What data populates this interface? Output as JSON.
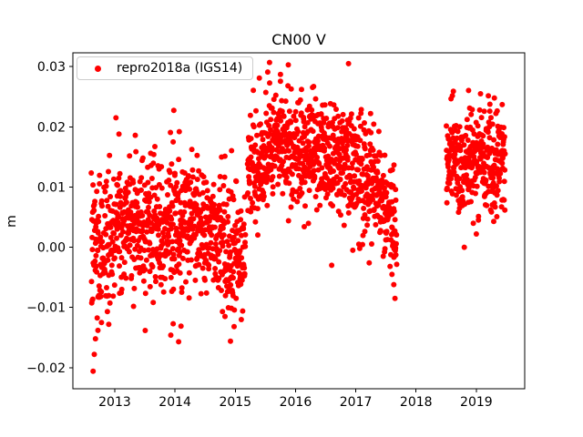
{
  "figure": {
    "background": "#ffffff"
  },
  "chart_data": {
    "type": "scatter",
    "title": "CN00 V",
    "xlabel": "",
    "ylabel": "m",
    "xlim": [
      2012.305,
      2019.803
    ],
    "ylim": [
      -0.0235,
      0.0323
    ],
    "grid": false,
    "xticks": {
      "values": [
        2013,
        2014,
        2015,
        2016,
        2017,
        2018,
        2019
      ],
      "labels": [
        "2013",
        "2014",
        "2015",
        "2016",
        "2017",
        "2018",
        "2019"
      ]
    },
    "yticks": {
      "values": [
        0.03,
        0.02,
        0.01,
        0.0,
        -0.01,
        -0.02
      ],
      "labels": [
        "0.03",
        "0.02",
        "0.01",
        "0.00",
        "−0.01",
        "−0.02"
      ]
    },
    "legend": {
      "position": "upper left",
      "entries": [
        {
          "label": "repro2018a (IGS14)",
          "color": "#ff0000",
          "marker": "point"
        }
      ]
    },
    "marker": {
      "color": "#ff0000",
      "radius": 3
    },
    "gaps": [
      [
        2017.68,
        2018.5
      ]
    ],
    "series": [
      {
        "name": "repro2018a (IGS14)",
        "model": {
          "seed": 7,
          "clamp": [
            -0.0215,
            0.0307
          ],
          "segments": [
            {
              "x0": 2012.61,
              "x1": 2013.0,
              "m0": -0.0005,
              "m1": 0.0015,
              "sd": 0.0055,
              "n": 130
            },
            {
              "x0": 2013.0,
              "x1": 2013.6,
              "m0": 0.004,
              "m1": 0.004,
              "sd": 0.0055,
              "n": 200
            },
            {
              "x0": 2013.6,
              "x1": 2014.2,
              "m0": 0.003,
              "m1": 0.0035,
              "sd": 0.0055,
              "n": 200
            },
            {
              "x0": 2014.2,
              "x1": 2014.7,
              "m0": 0.004,
              "m1": 0.003,
              "sd": 0.0048,
              "n": 165
            },
            {
              "x0": 2014.7,
              "x1": 2015.17,
              "m0": 0.0005,
              "m1": -0.0005,
              "sd": 0.0052,
              "n": 155
            },
            {
              "x0": 2015.2,
              "x1": 2015.55,
              "m0": 0.0125,
              "m1": 0.015,
              "sd": 0.0042,
              "n": 115
            },
            {
              "x0": 2015.55,
              "x1": 2016.35,
              "m0": 0.0168,
              "m1": 0.0162,
              "sd": 0.0043,
              "n": 265
            },
            {
              "x0": 2016.35,
              "x1": 2016.95,
              "m0": 0.0155,
              "m1": 0.014,
              "sd": 0.0043,
              "n": 200
            },
            {
              "x0": 2016.95,
              "x1": 2017.35,
              "m0": 0.0128,
              "m1": 0.0112,
              "sd": 0.0045,
              "n": 130
            },
            {
              "x0": 2017.35,
              "x1": 2017.68,
              "m0": 0.01,
              "m1": 0.0015,
              "sd": 0.0042,
              "n": 110
            },
            {
              "x0": 2018.5,
              "x1": 2019.48,
              "m0": 0.0145,
              "m1": 0.0138,
              "sd": 0.0042,
              "n": 320
            }
          ],
          "outliers": [
            [
              2012.64,
              -0.0206
            ],
            [
              2012.66,
              -0.0178
            ],
            [
              2012.68,
              -0.0152
            ],
            [
              2012.72,
              -0.0138
            ],
            [
              2012.78,
              -0.0125
            ],
            [
              2012.9,
              -0.0128
            ],
            [
              2013.02,
              0.0215
            ],
            [
              2013.07,
              0.0188
            ],
            [
              2013.34,
              0.0186
            ],
            [
              2013.93,
              -0.0146
            ],
            [
              2013.97,
              -0.0127
            ],
            [
              2014.06,
              -0.0157
            ],
            [
              2014.07,
              0.0192
            ],
            [
              2014.1,
              -0.0131
            ],
            [
              2014.83,
              -0.0115
            ],
            [
              2014.92,
              -0.0156
            ],
            [
              2015.1,
              -0.012
            ],
            [
              2015.4,
              0.0281
            ],
            [
              2015.57,
              0.0273
            ],
            [
              2015.75,
              0.0287
            ],
            [
              2015.88,
              0.0303
            ],
            [
              2016.1,
              0.0262
            ],
            [
              2016.3,
              0.0267
            ],
            [
              2016.88,
              0.0305
            ],
            [
              2016.6,
              -0.003
            ],
            [
              2016.95,
              -0.0005
            ],
            [
              2017.05,
              0.0005
            ],
            [
              2017.6,
              -0.0045
            ],
            [
              2017.63,
              -0.0062
            ],
            [
              2017.65,
              -0.0085
            ],
            [
              2017.62,
              0.0102
            ],
            [
              2017.66,
              0.0096
            ],
            [
              2018.62,
              0.0259
            ],
            [
              2019.07,
              0.0255
            ],
            [
              2019.3,
              0.0248
            ],
            [
              2019.43,
              0.0237
            ],
            [
              2018.8,
              0.0
            ],
            [
              2019.0,
              0.0022
            ]
          ]
        }
      }
    ]
  }
}
